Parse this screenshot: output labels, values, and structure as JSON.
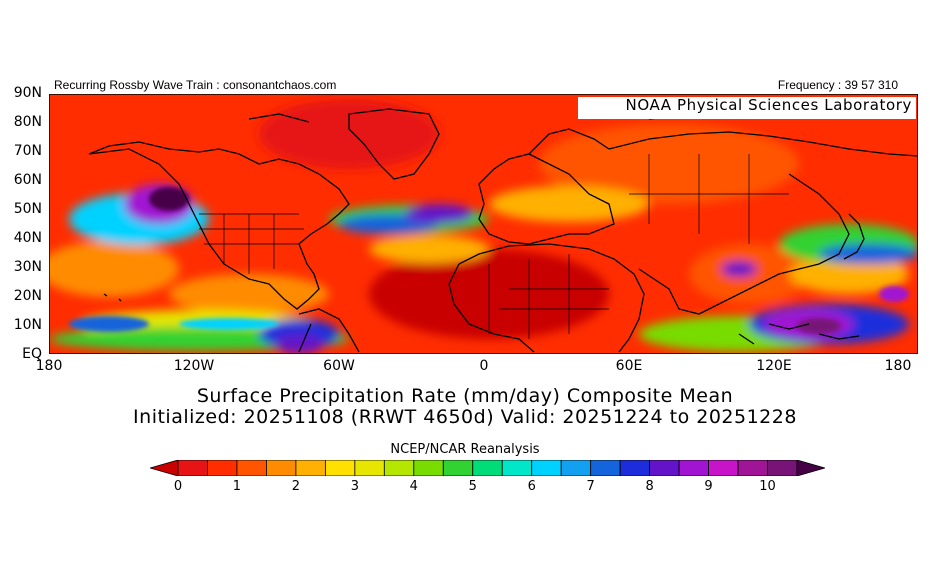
{
  "header": {
    "left": "Recurring Rossby Wave Train : consonantchaos.com",
    "right": "Frequency : 39 57 310"
  },
  "lab_label": "NOAA Physical Sciences Laboratory",
  "title": "Surface Precipitation Rate (mm/day) Composite Mean",
  "subtitle": "Initialized: 20251108 (RRWT 4650d) Valid: 20251224 to 20251228",
  "source": "NCEP/NCAR Reanalysis",
  "lat_labels": [
    "90N",
    "80N",
    "70N",
    "60N",
    "50N",
    "40N",
    "30N",
    "20N",
    "10N",
    "EQ"
  ],
  "lon_labels": [
    "180",
    "120W",
    "60W",
    "0",
    "60E",
    "120E",
    "180"
  ],
  "colorbar": {
    "colors": [
      "#c80000",
      "#e61414",
      "#ff2d00",
      "#ff5500",
      "#ff8c00",
      "#ffb000",
      "#ffe000",
      "#e6e600",
      "#b4e600",
      "#78dc00",
      "#32d232",
      "#00dc78",
      "#00e6c8",
      "#00d2ff",
      "#14a0f0",
      "#1464dc",
      "#1e2ddc",
      "#6414c8",
      "#a014d2",
      "#c814c8",
      "#a01496",
      "#781478",
      "#460046"
    ],
    "tick_labels": [
      "0",
      "1",
      "2",
      "3",
      "4",
      "5",
      "6",
      "7",
      "8",
      "9",
      "10"
    ]
  }
}
